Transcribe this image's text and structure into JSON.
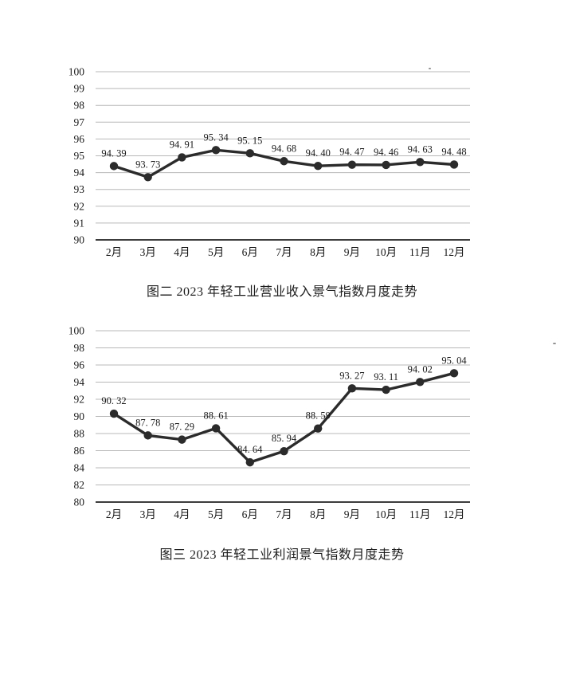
{
  "page": {
    "background_color": "#ffffff",
    "ink_color": "#2b2b2b",
    "grid_color": "#b8b8b8",
    "baseline_color": "#3c3c3c"
  },
  "chart_data": [
    {
      "type": "line",
      "title": "图二 2023 年轻工业营业收入景气指数月度走势",
      "categories": [
        "2月",
        "3月",
        "4月",
        "5月",
        "6月",
        "7月",
        "8月",
        "9月",
        "10月",
        "11月",
        "12月"
      ],
      "values": [
        94.39,
        93.73,
        94.91,
        95.34,
        95.15,
        94.68,
        94.4,
        94.47,
        94.46,
        94.63,
        94.48
      ],
      "point_labels": [
        "94. 39",
        "93. 73",
        "94. 91",
        "95. 34",
        "95. 15",
        "94. 68",
        "94. 40",
        "94. 47",
        "94. 46",
        "94. 63",
        "94. 48"
      ],
      "xlabel": "",
      "ylabel": "",
      "ylim": [
        90,
        100
      ],
      "ytick_step": 1,
      "grid": true,
      "legend": "none",
      "line_color": "#2b2b2b",
      "marker_color": "#2b2b2b",
      "grid_color": "#b8b8b8",
      "baseline_color": "#3c3c3c"
    },
    {
      "type": "line",
      "title": "图三 2023 年轻工业利润景气指数月度走势",
      "categories": [
        "2月",
        "3月",
        "4月",
        "5月",
        "6月",
        "7月",
        "8月",
        "9月",
        "10月",
        "11月",
        "12月"
      ],
      "values": [
        90.32,
        87.78,
        87.29,
        88.61,
        84.64,
        85.94,
        88.59,
        93.27,
        93.11,
        94.02,
        95.04
      ],
      "point_labels": [
        "90. 32",
        "87. 78",
        "87. 29",
        "88. 61",
        "84. 64",
        "85. 94",
        "88. 59",
        "93. 27",
        "93. 11",
        "94. 02",
        "95. 04"
      ],
      "xlabel": "",
      "ylabel": "",
      "ylim": [
        80,
        100
      ],
      "ytick_step": 2,
      "grid": true,
      "legend": "none",
      "line_color": "#2b2b2b",
      "marker_color": "#2b2b2b",
      "grid_color": "#b8b8b8",
      "baseline_color": "#3c3c3c"
    }
  ]
}
